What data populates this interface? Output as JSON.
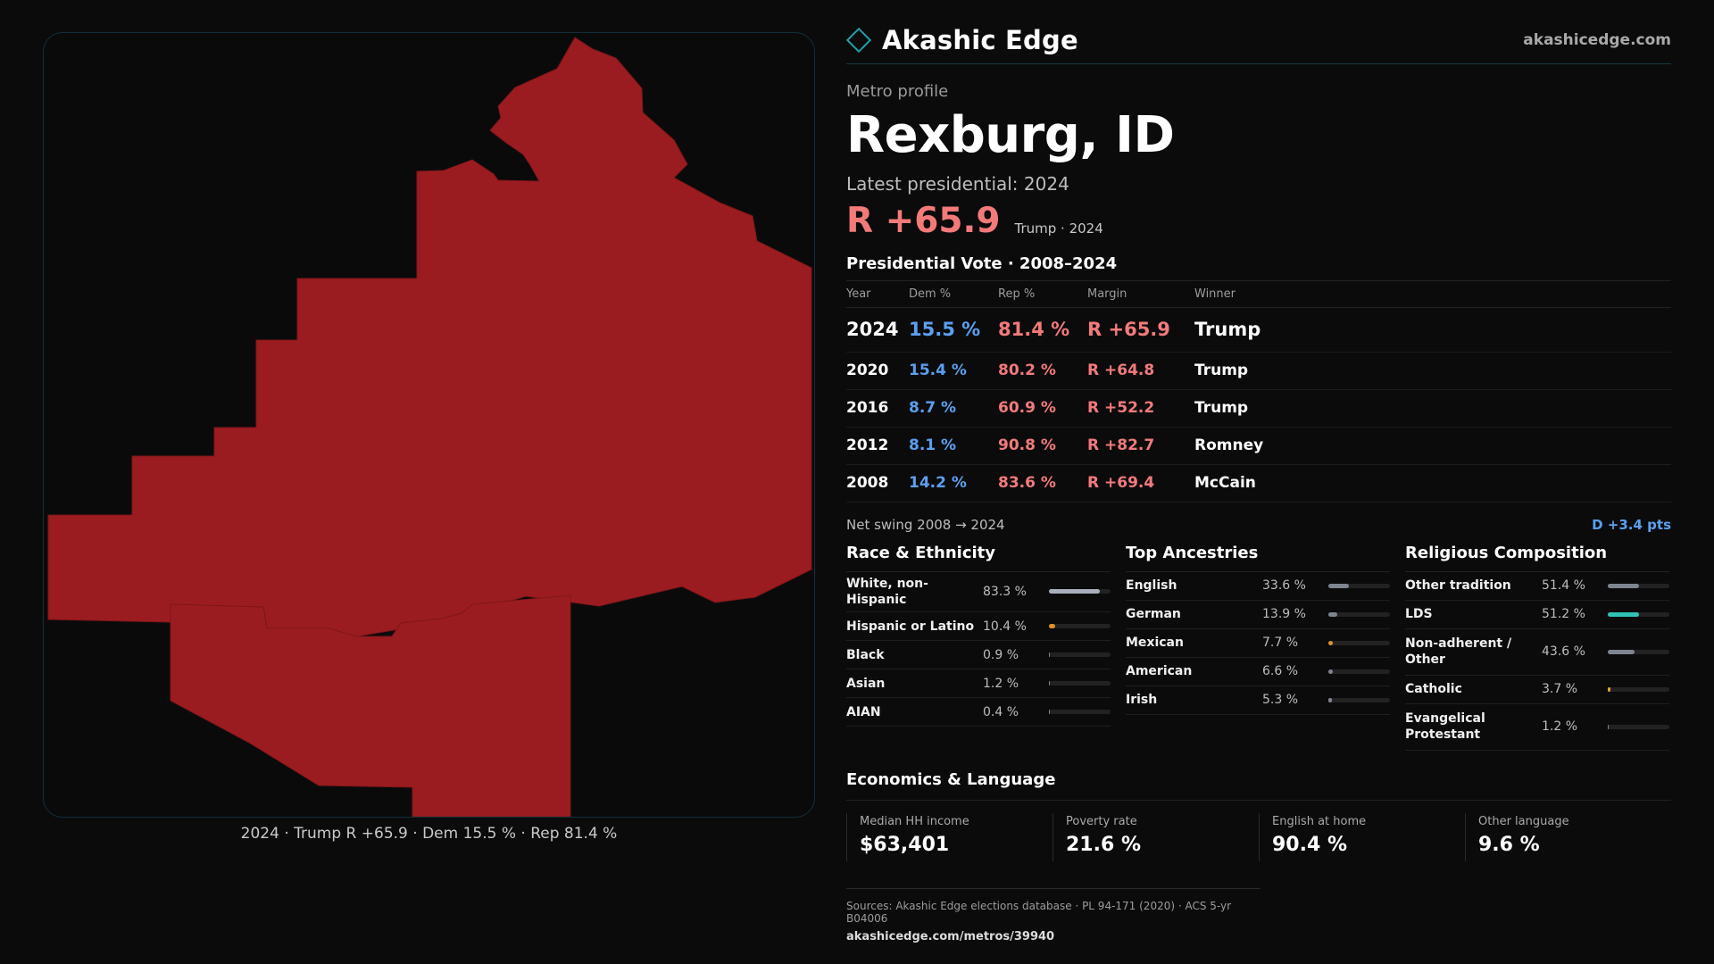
{
  "brand": {
    "name": "Akashic Edge",
    "url": "akashicedge.com"
  },
  "profile": {
    "eyebrow": "Metro profile",
    "title": "Rexburg, ID",
    "latest_label": "Latest presidential: 2024",
    "headline_margin": "R +65.9",
    "headline_sub": "Trump · 2024"
  },
  "map": {
    "fill_color": "#9b1c20",
    "caption": "2024 · Trump R +65.9 · Dem 15.5 % · Rep 81.4 %"
  },
  "votes": {
    "section_title": "Presidential Vote · 2008–2024",
    "headers": {
      "year": "Year",
      "dem": "Dem %",
      "rep": "Rep %",
      "margin": "Margin",
      "winner": "Winner"
    },
    "rows": [
      {
        "year": "2024",
        "dem": "15.5 %",
        "rep": "81.4 %",
        "margin": "R +65.9",
        "winner": "Trump"
      },
      {
        "year": "2020",
        "dem": "15.4 %",
        "rep": "80.2 %",
        "margin": "R +64.8",
        "winner": "Trump"
      },
      {
        "year": "2016",
        "dem": "8.7 %",
        "rep": "60.9 %",
        "margin": "R +52.2",
        "winner": "Trump"
      },
      {
        "year": "2012",
        "dem": "8.1 %",
        "rep": "90.8 %",
        "margin": "R +82.7",
        "winner": "Romney"
      },
      {
        "year": "2008",
        "dem": "14.2 %",
        "rep": "83.6 %",
        "margin": "R +69.4",
        "winner": "McCain"
      }
    ]
  },
  "swing": {
    "label": "Net swing 2008 → 2024",
    "value": "D +3.4 pts"
  },
  "race": {
    "title": "Race & Ethnicity",
    "items": [
      {
        "label": "White, non-Hispanic",
        "pct": "83.3 %",
        "value": 83.3,
        "color": "#a9b0bb"
      },
      {
        "label": "Hispanic or Latino",
        "pct": "10.4 %",
        "value": 10.4,
        "color": "#e0922a"
      },
      {
        "label": "Black",
        "pct": "0.9 %",
        "value": 0.9,
        "color": "#7f8590"
      },
      {
        "label": "Asian",
        "pct": "1.2 %",
        "value": 1.2,
        "color": "#7f8590"
      },
      {
        "label": "AIAN",
        "pct": "0.4 %",
        "value": 0.4,
        "color": "#7f8590"
      }
    ]
  },
  "ancestry": {
    "title": "Top Ancestries",
    "items": [
      {
        "label": "English",
        "pct": "33.6 %",
        "value": 33.6,
        "color": "#7f8590"
      },
      {
        "label": "German",
        "pct": "13.9 %",
        "value": 13.9,
        "color": "#7f8590"
      },
      {
        "label": "Mexican",
        "pct": "7.7 %",
        "value": 7.7,
        "color": "#e0922a"
      },
      {
        "label": "American",
        "pct": "6.6 %",
        "value": 6.6,
        "color": "#7f8590"
      },
      {
        "label": "Irish",
        "pct": "5.3 %",
        "value": 5.3,
        "color": "#7f8590"
      }
    ]
  },
  "religion": {
    "title": "Religious Composition",
    "items": [
      {
        "label": "Other tradition",
        "pct": "51.4 %",
        "value": 51.4,
        "color": "#7f8590"
      },
      {
        "label": "LDS",
        "pct": "51.2 %",
        "value": 51.2,
        "color": "#2fc2b5"
      },
      {
        "label": "Non-adherent / Other",
        "pct": "43.6 %",
        "value": 43.6,
        "color": "#7f8590"
      },
      {
        "label": "Catholic",
        "pct": "3.7 %",
        "value": 3.7,
        "color": "#e0a32a"
      },
      {
        "label": "Evangelical Protestant",
        "pct": "1.2 %",
        "value": 1.2,
        "color": "#7f8590"
      }
    ]
  },
  "economics": {
    "title": "Economics & Language",
    "items": [
      {
        "label": "Median HH income",
        "value": "$63,401"
      },
      {
        "label": "Poverty rate",
        "value": "21.6 %"
      },
      {
        "label": "English at home",
        "value": "90.4 %"
      },
      {
        "label": "Other language",
        "value": "9.6 %"
      }
    ]
  },
  "sources": {
    "text": "Sources: Akashic Edge elections database · PL 94-171 (2020) · ACS 5-yr B04006",
    "url": "akashicedge.com/metros/39940"
  }
}
